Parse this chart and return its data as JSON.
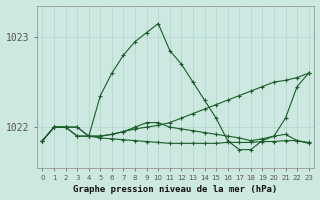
{
  "title": "Graphe pression niveau de la mer (hPa)",
  "background_color": "#cce8e0",
  "grid_color": "#b0d4cc",
  "line_color": "#1a5c2a",
  "x_labels": [
    "0",
    "1",
    "2",
    "3",
    "4",
    "5",
    "6",
    "7",
    "8",
    "9",
    "10",
    "11",
    "12",
    "13",
    "14",
    "15",
    "16",
    "17",
    "18",
    "19",
    "20",
    "21",
    "22",
    "23"
  ],
  "yticks": [
    1022,
    1023
  ],
  "ylim": [
    1021.55,
    1023.35
  ],
  "series": [
    [
      1021.85,
      1022.0,
      1022.0,
      1022.0,
      1021.9,
      1022.35,
      1022.6,
      1022.8,
      1022.95,
      1023.05,
      1023.15,
      1022.85,
      1022.7,
      1022.5,
      1022.3,
      1022.1,
      1021.85,
      1021.75,
      1021.75,
      1021.85,
      1021.9,
      1022.1,
      1022.45,
      1022.6
    ],
    [
      1021.85,
      1022.0,
      1022.0,
      1022.0,
      1021.9,
      1021.9,
      1021.92,
      1021.95,
      1022.0,
      1022.05,
      1022.05,
      1022.0,
      1021.98,
      1021.96,
      1021.94,
      1021.92,
      1021.9,
      1021.88,
      1021.85,
      1021.87,
      1021.9,
      1021.92,
      1021.85,
      1021.82
    ],
    [
      1021.85,
      1022.0,
      1022.0,
      1021.9,
      1021.9,
      1021.9,
      1021.92,
      1021.95,
      1021.98,
      1022.0,
      1022.02,
      1022.05,
      1022.1,
      1022.15,
      1022.2,
      1022.25,
      1022.3,
      1022.35,
      1022.4,
      1022.45,
      1022.5,
      1022.52,
      1022.55,
      1022.6
    ],
    [
      1021.85,
      1022.0,
      1022.0,
      1021.9,
      1021.9,
      1021.88,
      1021.87,
      1021.86,
      1021.85,
      1021.84,
      1021.83,
      1021.82,
      1021.82,
      1021.82,
      1021.82,
      1021.82,
      1021.83,
      1021.83,
      1021.83,
      1021.84,
      1021.84,
      1021.85,
      1021.85,
      1021.83
    ]
  ]
}
